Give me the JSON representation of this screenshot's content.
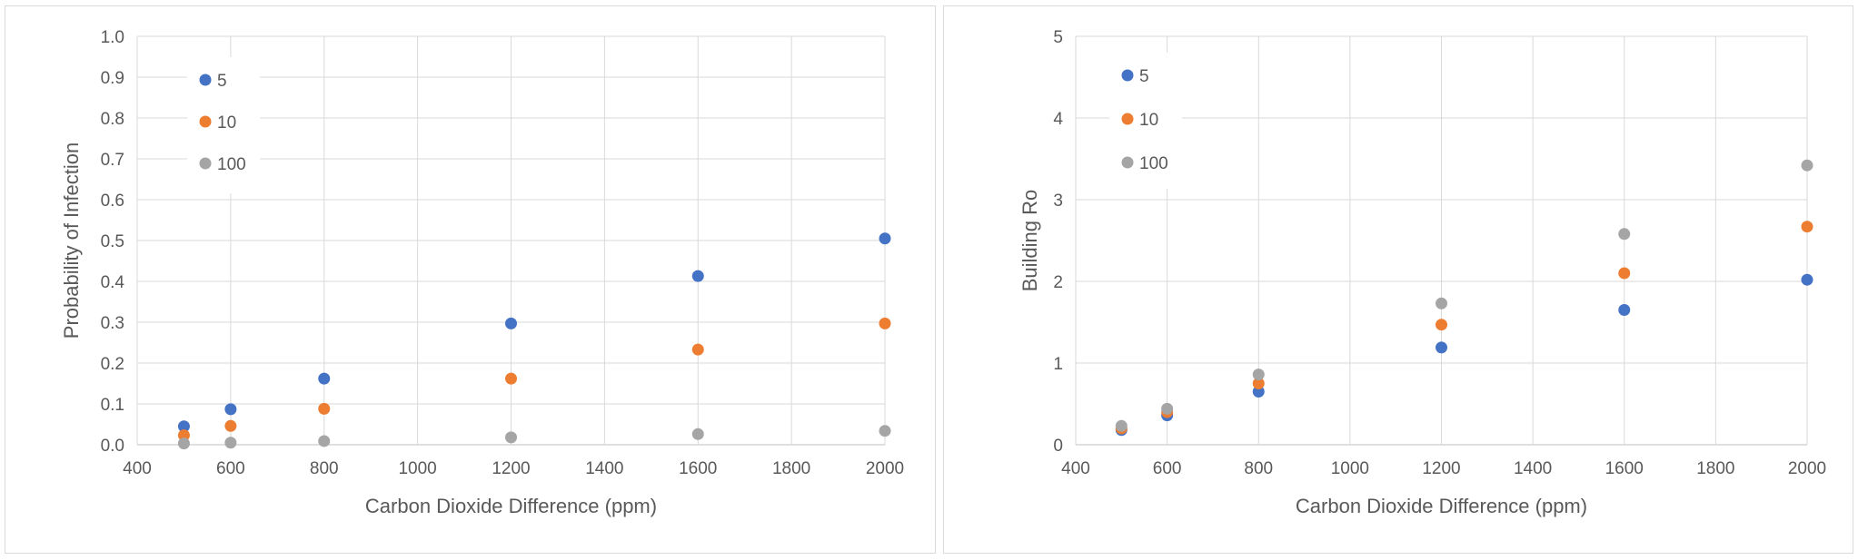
{
  "chart_data": [
    {
      "type": "scatter",
      "title": "",
      "xlabel": "Carbon Dioxide Difference (ppm)",
      "ylabel": "Probability of Infection",
      "xlim": [
        400,
        2000
      ],
      "ylim": [
        0,
        1.0
      ],
      "x_ticks": [
        "400",
        "600",
        "800",
        "1000",
        "1200",
        "1400",
        "1600",
        "1800",
        "2000"
      ],
      "y_ticks": [
        "0.0",
        "0.1",
        "0.2",
        "0.3",
        "0.4",
        "0.5",
        "0.6",
        "0.7",
        "0.8",
        "0.9",
        "1.0"
      ],
      "grid": "vertical and horizontal",
      "legend_position": "top-left",
      "series": [
        {
          "name": "5",
          "color": "#4472c4",
          "x": [
            500,
            600,
            800,
            1200,
            1600,
            2000
          ],
          "y": [
            0.045,
            0.087,
            0.162,
            0.297,
            0.413,
            0.505
          ]
        },
        {
          "name": "10",
          "color": "#ed7d31",
          "x": [
            500,
            600,
            800,
            1200,
            1600,
            2000
          ],
          "y": [
            0.023,
            0.046,
            0.088,
            0.162,
            0.233,
            0.297
          ]
        },
        {
          "name": "100",
          "color": "#a5a5a5",
          "x": [
            500,
            600,
            800,
            1200,
            1600,
            2000
          ],
          "y": [
            0.003,
            0.005,
            0.009,
            0.018,
            0.026,
            0.034
          ]
        }
      ]
    },
    {
      "type": "scatter",
      "title": "",
      "xlabel": "Carbon Dioxide Difference (ppm)",
      "ylabel": "Building Ro",
      "xlim": [
        400,
        2000
      ],
      "ylim": [
        0,
        5
      ],
      "x_ticks": [
        "400",
        "600",
        "800",
        "1000",
        "1200",
        "1400",
        "1600",
        "1800",
        "2000"
      ],
      "y_ticks": [
        "0",
        "1",
        "2",
        "3",
        "4",
        "5"
      ],
      "grid": "vertical and horizontal",
      "legend_position": "top-left",
      "series": [
        {
          "name": "5",
          "color": "#4472c4",
          "x": [
            500,
            600,
            800,
            1200,
            1600,
            2000
          ],
          "y": [
            0.18,
            0.36,
            0.65,
            1.19,
            1.65,
            2.02
          ]
        },
        {
          "name": "10",
          "color": "#ed7d31",
          "x": [
            500,
            600,
            800,
            1200,
            1600,
            2000
          ],
          "y": [
            0.2,
            0.4,
            0.75,
            1.47,
            2.1,
            2.67
          ]
        },
        {
          "name": "100",
          "color": "#a5a5a5",
          "x": [
            500,
            600,
            800,
            1200,
            1600,
            2000
          ],
          "y": [
            0.23,
            0.44,
            0.86,
            1.73,
            2.58,
            3.42
          ]
        }
      ]
    }
  ]
}
